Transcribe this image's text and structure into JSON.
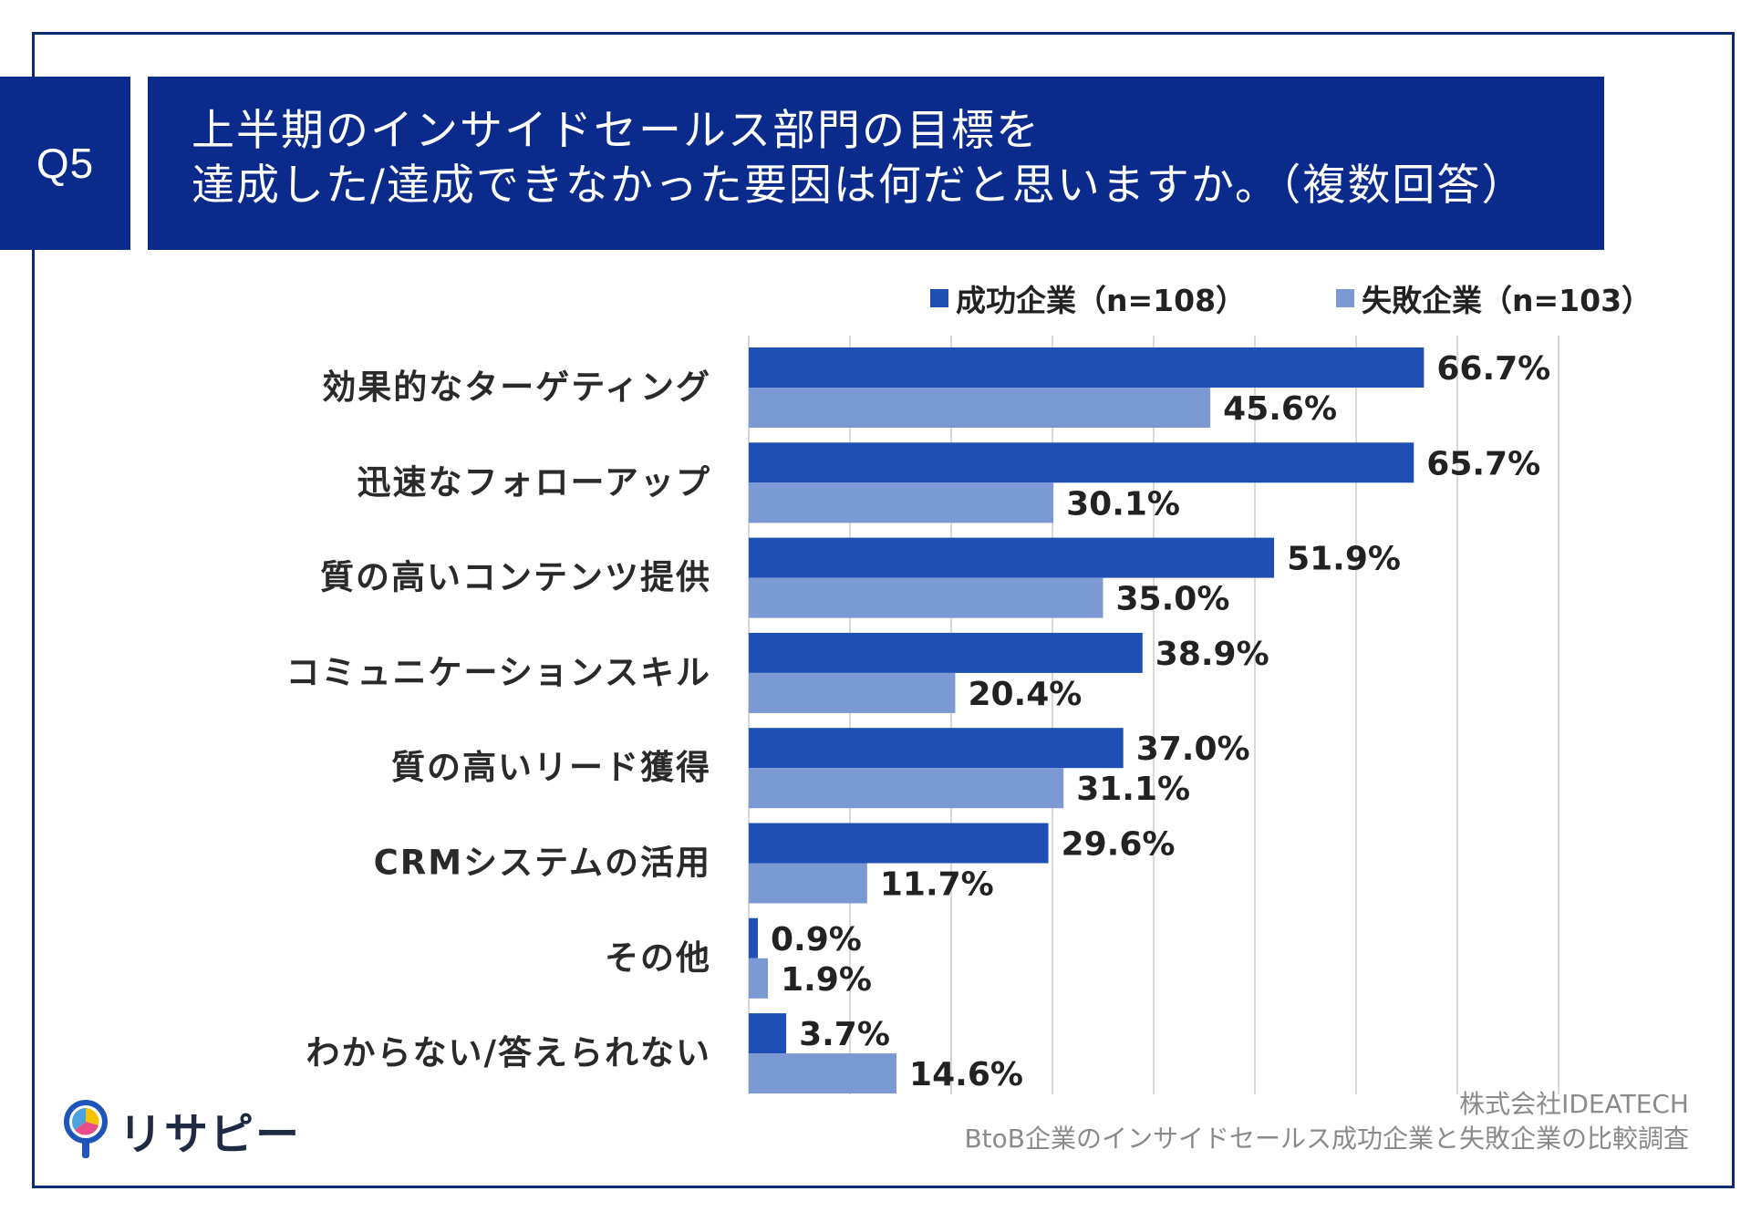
{
  "badge": "Q5",
  "title": {
    "line1": "上半期のインサイドセールス部門の目標を",
    "line2": "達成した/達成できなかった要因は何だと思いますか。（複数回答）"
  },
  "colors": {
    "navy": "#0a2b8c",
    "success": "#1f4fb4",
    "failure": "#7b9ad3",
    "grid": "#d9d9d9"
  },
  "chart_data": {
    "type": "bar",
    "orientation": "horizontal",
    "categories": [
      "効果的なターゲティング",
      "迅速なフォローアップ",
      "質の高いコンテンツ提供",
      "コミュニケーションスキル",
      "質の高いリード獲得",
      "CRMシステムの活用",
      "その他",
      "わからない/答えられない"
    ],
    "series": [
      {
        "name": "成功企業（n=108）",
        "color": "#1f4fb4",
        "values": [
          66.7,
          65.7,
          51.9,
          38.9,
          37.0,
          29.6,
          0.9,
          3.7
        ],
        "labels": [
          "66.7%",
          "65.7%",
          "51.9%",
          "38.9%",
          "37.0%",
          "29.6%",
          "0.9%",
          "3.7%"
        ]
      },
      {
        "name": "失敗企業（n=103）",
        "color": "#7b9ad3",
        "values": [
          45.6,
          30.1,
          35.0,
          20.4,
          31.1,
          11.7,
          1.9,
          14.6
        ],
        "labels": [
          "45.6%",
          "30.1%",
          "35.0%",
          "20.4%",
          "31.1%",
          "11.7%",
          "1.9%",
          "14.6%"
        ]
      }
    ],
    "xlim": [
      0,
      80
    ],
    "grid": true,
    "legend_position": "top-right"
  },
  "source": {
    "line1": "株式会社IDEATECH",
    "line2": "BtoB企業のインサイドセールス成功企業と失敗企業の比較調査"
  },
  "logo": {
    "text": "リサピー",
    "icon": "magnifier-pie-icon"
  }
}
